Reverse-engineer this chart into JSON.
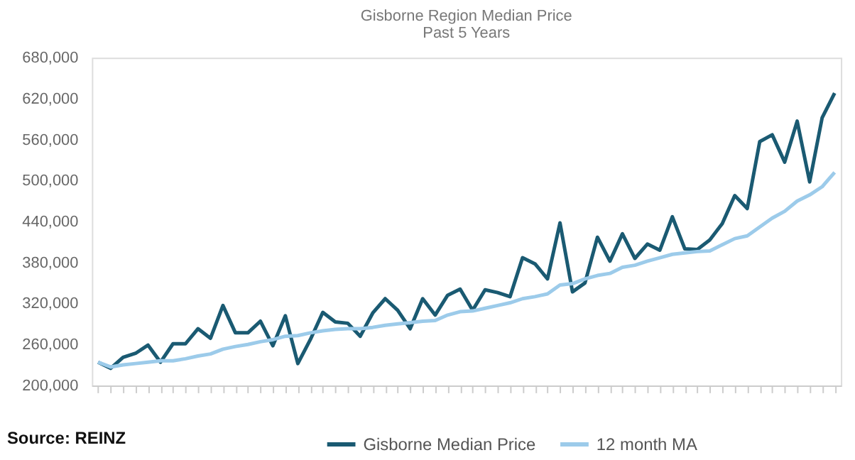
{
  "chart_data": {
    "type": "line",
    "title": "Gisborne Region Median Price",
    "subtitle": "Past 5 Years",
    "categories": [
      null,
      null,
      null,
      null,
      null,
      null,
      null,
      null,
      null,
      null,
      null,
      null,
      null,
      null,
      null,
      null,
      null,
      null,
      null,
      null,
      null,
      null,
      null,
      null,
      null,
      null,
      null,
      null,
      null,
      null,
      null,
      null,
      null,
      null,
      null,
      null,
      null,
      null,
      null,
      null,
      null,
      null,
      null,
      null,
      null,
      null,
      null,
      null,
      null,
      null,
      null,
      null,
      null,
      null,
      null,
      null,
      null,
      null,
      null,
      null
    ],
    "series": [
      {
        "name": "Gisborne Median Price",
        "color": "#1a5a72",
        "values": [
          234000,
          225000,
          241000,
          247000,
          259000,
          234000,
          261000,
          261000,
          283000,
          269000,
          317000,
          277000,
          277000,
          294000,
          258000,
          302000,
          232000,
          267000,
          307000,
          293000,
          291000,
          272000,
          306000,
          327000,
          310000,
          283000,
          327000,
          303000,
          332000,
          341000,
          310000,
          340000,
          336000,
          330000,
          387000,
          378000,
          356000,
          438000,
          337000,
          350000,
          417000,
          382000,
          422000,
          386000,
          407000,
          398000,
          447000,
          400000,
          399000,
          413000,
          437000,
          478000,
          459000,
          557000,
          567000,
          527000,
          587000,
          498000,
          592000,
          628000
        ]
      },
      {
        "name": "12 month MA",
        "color": "#9ccbea",
        "values": [
          234000,
          227000,
          230000,
          232000,
          234000,
          236000,
          236000,
          239000,
          243000,
          246000,
          253000,
          257000,
          260000,
          264000,
          267000,
          272000,
          273000,
          277000,
          280000,
          282000,
          283000,
          283000,
          285000,
          288000,
          290000,
          292000,
          294000,
          295000,
          303000,
          308000,
          309000,
          313000,
          317000,
          321000,
          327000,
          330000,
          334000,
          347000,
          349000,
          356000,
          361000,
          364000,
          373000,
          376000,
          382000,
          387000,
          392000,
          394000,
          396000,
          397000,
          406000,
          415000,
          419000,
          432000,
          445000,
          455000,
          470000,
          479000,
          491000,
          512000
        ]
      }
    ],
    "ylim": [
      200000,
      680000
    ],
    "yticks": [
      {
        "value": 200000,
        "label": "200,000"
      },
      {
        "value": 260000,
        "label": "260,000"
      },
      {
        "value": 320000,
        "label": "320,000"
      },
      {
        "value": 380000,
        "label": "380,000"
      },
      {
        "value": 440000,
        "label": "440,000"
      },
      {
        "value": 500000,
        "label": "500,000"
      },
      {
        "value": 560000,
        "label": "560,000"
      },
      {
        "value": 620000,
        "label": "620,000"
      },
      {
        "value": 680000,
        "label": "680,000"
      }
    ],
    "grid": false,
    "legend": "bottom",
    "marker": "none",
    "line_style": "solid",
    "annotations": [
      "Source: REINZ"
    ]
  }
}
